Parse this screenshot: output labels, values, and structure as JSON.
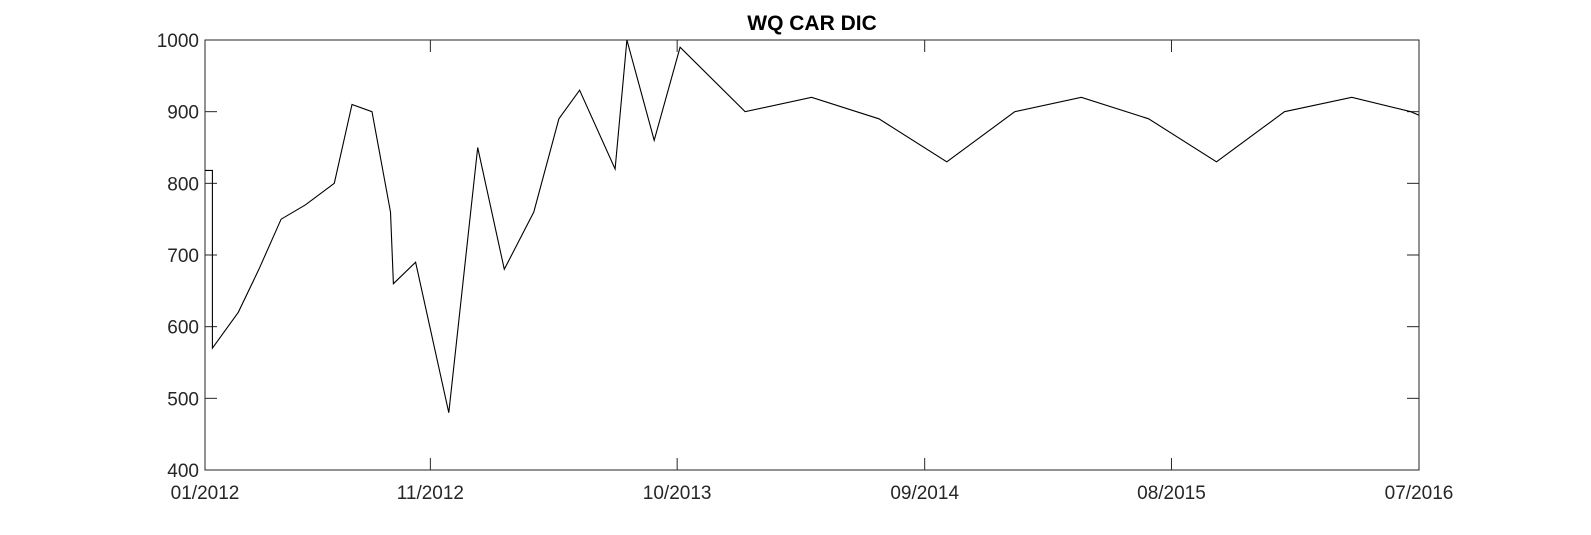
{
  "chart_data": {
    "type": "line",
    "title": "WQ CAR DIC",
    "xlabel": "",
    "ylabel": "",
    "ylim": [
      400,
      1000
    ],
    "yticks": [
      400,
      500,
      600,
      700,
      800,
      900,
      1000
    ],
    "xlim": [
      "2012-01-01",
      "2016-07-01"
    ],
    "xticks": [
      {
        "date": "2012-01-01",
        "label": "01/2012"
      },
      {
        "date": "2012-11-01",
        "label": "11/2012"
      },
      {
        "date": "2013-10-01",
        "label": "10/2013"
      },
      {
        "date": "2014-09-01",
        "label": "09/2014"
      },
      {
        "date": "2015-08-01",
        "label": "08/2015"
      },
      {
        "date": "2016-07-01",
        "label": "07/2016"
      }
    ],
    "grid": false,
    "box": true,
    "series": [
      {
        "color": "#000000",
        "points": [
          {
            "x": "2012-01-01",
            "y": 818
          },
          {
            "x": "2012-01-11",
            "y": 818
          },
          {
            "x": "2012-01-11",
            "y": 570
          },
          {
            "x": "2012-02-15",
            "y": 620
          },
          {
            "x": "2012-03-14",
            "y": 680
          },
          {
            "x": "2012-04-13",
            "y": 750
          },
          {
            "x": "2012-05-16",
            "y": 770
          },
          {
            "x": "2012-06-24",
            "y": 800
          },
          {
            "x": "2012-07-18",
            "y": 910
          },
          {
            "x": "2012-08-14",
            "y": 900
          },
          {
            "x": "2012-09-08",
            "y": 760
          },
          {
            "x": "2012-09-12",
            "y": 660
          },
          {
            "x": "2012-10-12",
            "y": 690
          },
          {
            "x": "2012-11-26",
            "y": 480
          },
          {
            "x": "2013-01-04",
            "y": 850
          },
          {
            "x": "2013-02-09",
            "y": 680
          },
          {
            "x": "2013-03-21",
            "y": 760
          },
          {
            "x": "2013-04-24",
            "y": 890
          },
          {
            "x": "2013-05-22",
            "y": 930
          },
          {
            "x": "2013-07-09",
            "y": 820
          },
          {
            "x": "2013-07-25",
            "y": 1000
          },
          {
            "x": "2013-08-31",
            "y": 860
          },
          {
            "x": "2013-10-05",
            "y": 990
          },
          {
            "x": "2014-01-01",
            "y": 900
          },
          {
            "x": "2014-04-01",
            "y": 920
          },
          {
            "x": "2014-07-01",
            "y": 890
          },
          {
            "x": "2014-10-01",
            "y": 830
          },
          {
            "x": "2015-01-01",
            "y": 900
          },
          {
            "x": "2015-04-01",
            "y": 920
          },
          {
            "x": "2015-07-01",
            "y": 890
          },
          {
            "x": "2015-10-01",
            "y": 830
          },
          {
            "x": "2016-01-01",
            "y": 900
          },
          {
            "x": "2016-04-01",
            "y": 920
          },
          {
            "x": "2016-06-20",
            "y": 900
          },
          {
            "x": "2016-07-01",
            "y": 895
          }
        ]
      }
    ]
  }
}
